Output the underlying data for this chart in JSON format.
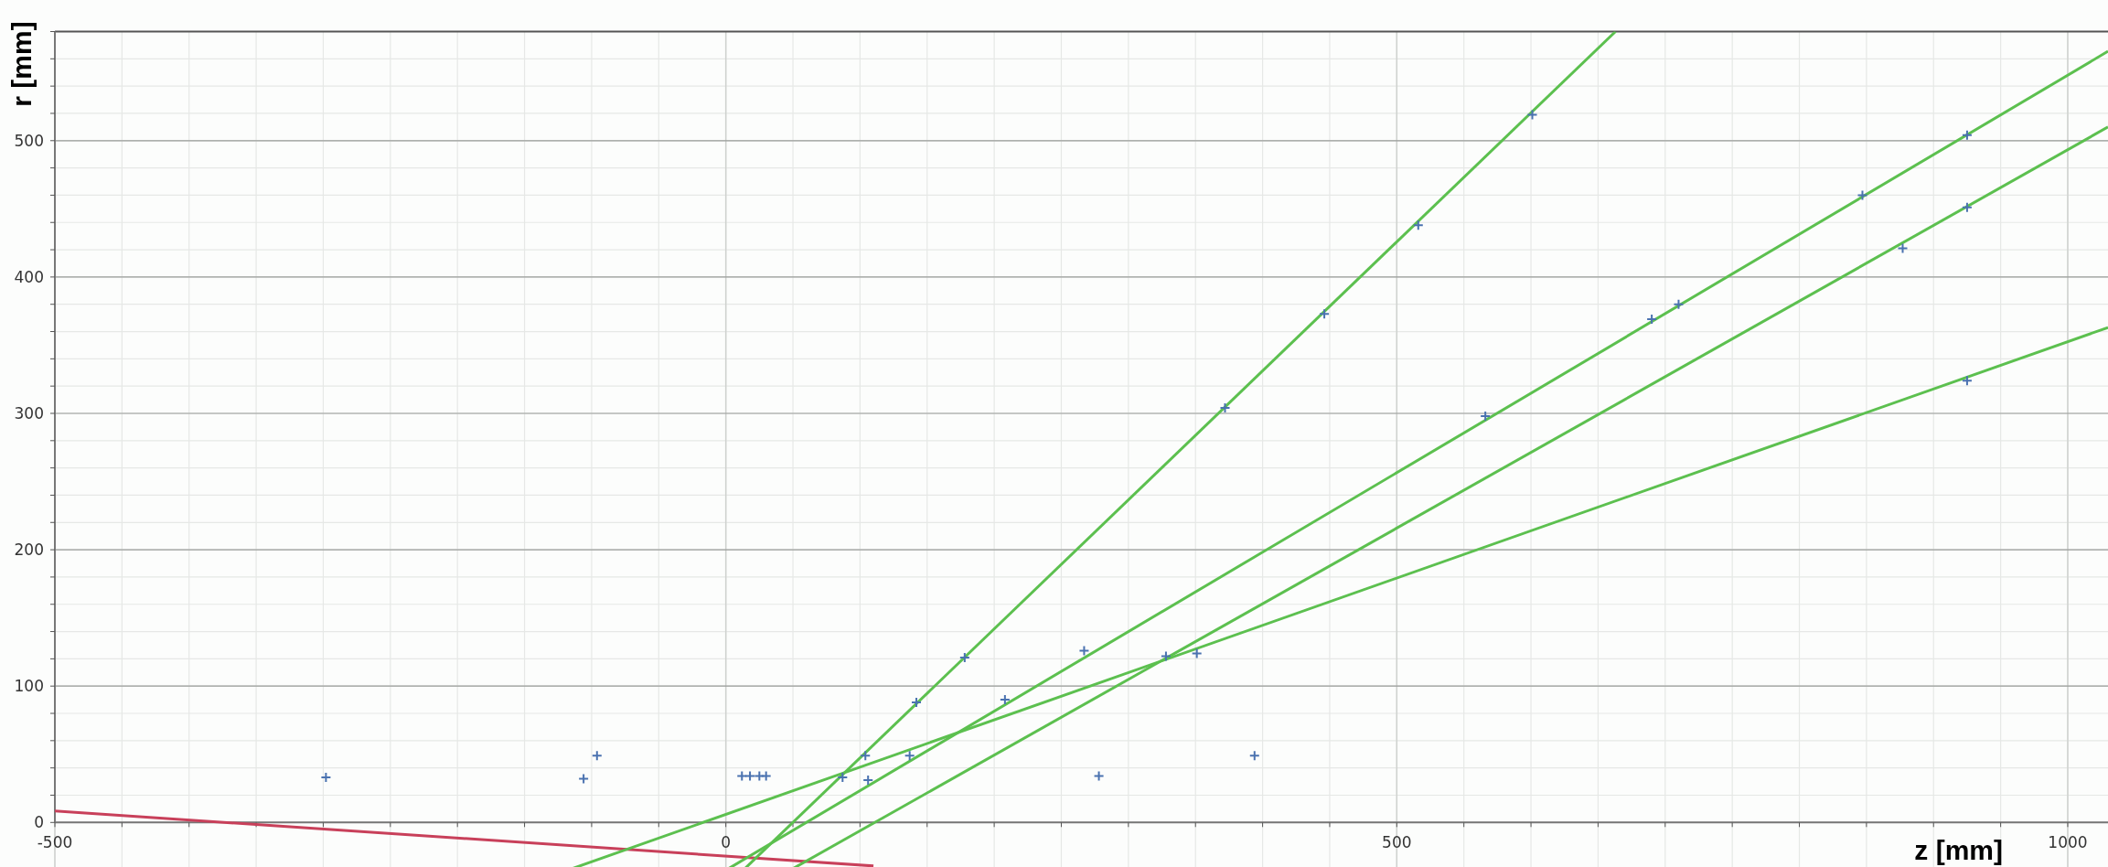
{
  "chart_data": {
    "type": "scatter",
    "xlabel": "z [mm]",
    "ylabel": "r [mm]",
    "xlim": [
      -500,
      1030
    ],
    "ylim": [
      -34,
      580
    ],
    "xticks": [
      -500,
      0,
      500,
      1000
    ],
    "yticks": [
      0,
      100,
      200,
      300,
      400,
      500
    ],
    "grid": true,
    "series": [
      {
        "type": "line",
        "color": "#c8405a",
        "x": [
          -500,
          110
        ],
        "values": [
          8.4,
          -31.9
        ]
      },
      {
        "type": "line",
        "color": "#5cc04f",
        "x": [
          14,
          663
        ],
        "values": [
          -34,
          580
        ]
      },
      {
        "type": "line",
        "color": "#5cc04f",
        "x": [
          1.7,
          1030
        ],
        "values": [
          -34,
          565.5
        ]
      },
      {
        "type": "line",
        "color": "#5cc04f",
        "x": [
          49.7,
          1030
        ],
        "values": [
          -34,
          510
        ]
      },
      {
        "type": "line",
        "color": "#5cc04f",
        "x": [
          -115,
          1030
        ],
        "values": [
          -34,
          363
        ]
      },
      {
        "marker": "cross",
        "color": "#4a72b0",
        "x": [
          -298,
          -106,
          -96,
          12,
          18,
          25,
          30,
          278,
          394,
          104,
          142,
          178,
          372,
          446,
          516,
          601,
          208,
          267,
          566,
          690,
          710,
          847,
          925,
          328,
          351,
          877,
          925,
          925,
          137,
          87,
          106
        ],
        "values": [
          33,
          32,
          49,
          34,
          34,
          34,
          34,
          34,
          49,
          49,
          88,
          121,
          304,
          373,
          438,
          519,
          90,
          126,
          298,
          369,
          380,
          460,
          504,
          122,
          124,
          421,
          451,
          324,
          49,
          33,
          31
        ]
      }
    ]
  }
}
